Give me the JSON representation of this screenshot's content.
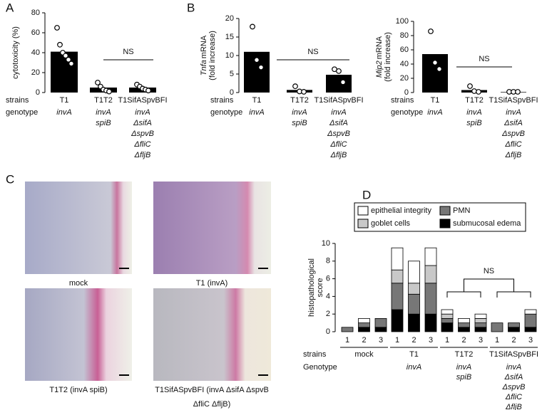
{
  "panels": {
    "labels": [
      "A",
      "B",
      "C",
      "D"
    ],
    "images": [
      {
        "caption": [
          "mock"
        ]
      },
      {
        "caption": [
          "T1 (invA)"
        ]
      },
      {
        "caption": [
          "T1T2 (invA spiB)"
        ]
      },
      {
        "caption": [
          "T1SifASpvBFI (invA ΔsifA ΔspvB",
          "ΔfliC ΔfljB)"
        ]
      }
    ]
  },
  "chart_data": [
    {
      "type": "bar",
      "ylabel": {
        "gene": "",
        "text": "cytotoxicity (%)",
        "unit": ""
      },
      "categories": [
        "T1",
        "T1T2",
        "T1SifASpvBFI"
      ],
      "values": [
        41,
        5,
        5
      ],
      "points": [
        [
          65,
          48,
          40,
          37,
          33,
          29
        ],
        [
          10,
          6,
          3,
          2,
          1
        ],
        [
          8,
          6,
          4,
          3,
          2
        ]
      ],
      "color": "#000000",
      "ylim": [
        0,
        80
      ],
      "yticks": [
        0,
        20,
        40,
        60,
        80
      ],
      "row_labels": [
        "strains",
        "genotype"
      ],
      "genotypes": [
        [
          "invA"
        ],
        [
          "invA",
          "spiB"
        ],
        [
          "invA",
          "ΔsifA",
          "ΔspvB",
          "ΔfliC",
          "ΔfljB"
        ]
      ],
      "annotations": [
        {
          "text": "NS"
        }
      ]
    },
    {
      "type": "bar",
      "ylabel": {
        "gene": "Tnfa",
        "text": "mRNA",
        "unit": "(fold increase)"
      },
      "categories": [
        "T1",
        "T1T2",
        "T1SifASpvBFI"
      ],
      "values": [
        11,
        0.7,
        4.8
      ],
      "points": [
        [
          17.8,
          8.8,
          6.8
        ],
        [
          1.7,
          0.3,
          0.2
        ],
        [
          6.3,
          5.8,
          2.8
        ]
      ],
      "color": "#000000",
      "ylim": [
        0,
        20
      ],
      "yticks": [
        0,
        5,
        10,
        15,
        20
      ],
      "row_labels": [
        "strains",
        "genotype"
      ],
      "genotypes": [
        [
          "invA"
        ],
        [
          "invA",
          "spiB"
        ],
        [
          "invA",
          "ΔsifA",
          "ΔspvB",
          "ΔfliC",
          "ΔfljB"
        ]
      ],
      "annotations": [
        {
          "text": "NS"
        }
      ]
    },
    {
      "type": "bar",
      "ylabel": {
        "gene": "Mip2",
        "text": "mRNA",
        "unit": "(fold increase)"
      },
      "categories": [
        "T1",
        "T1T2",
        "T1SifASpvBFI"
      ],
      "values": [
        54,
        3.5,
        0.7
      ],
      "points": [
        [
          86,
          42,
          33
        ],
        [
          9,
          2,
          1
        ],
        [
          1,
          1,
          1
        ]
      ],
      "color": "#000000",
      "ylim": [
        0,
        100
      ],
      "yticks": [
        0,
        20,
        40,
        60,
        80,
        100
      ],
      "row_labels": [
        "strains",
        "genotype"
      ],
      "genotypes": [
        [
          "invA"
        ],
        [
          "invA",
          "spiB"
        ],
        [
          "invA",
          "ΔsifA",
          "ΔspvB",
          "ΔfliC",
          "ΔfljB"
        ]
      ],
      "annotations": [
        {
          "text": "NS"
        }
      ]
    },
    {
      "type": "stacked-bar",
      "ylabel": [
        "histopathological",
        "score"
      ],
      "categories": [
        "1",
        "2",
        "3",
        "1",
        "2",
        "3",
        "1",
        "2",
        "3",
        "1",
        "2",
        "3"
      ],
      "series": [
        {
          "name": "submucosal edema",
          "color": "#000000",
          "values": [
            0,
            0.5,
            0.5,
            2.5,
            2,
            2,
            1,
            0.5,
            0.5,
            0,
            0.5,
            0.5
          ]
        },
        {
          "name": "PMN",
          "color": "#777777",
          "values": [
            0.5,
            0.5,
            1,
            3,
            2.25,
            3.5,
            0.5,
            0.5,
            0.5,
            1,
            0.5,
            1.5
          ]
        },
        {
          "name": "goblet cells",
          "color": "#c8c8c8",
          "values": [
            0,
            0,
            0,
            1.5,
            1.25,
            2,
            0.5,
            0,
            0.5,
            0,
            0,
            0
          ]
        },
        {
          "name": "epithelial integrity",
          "color": "#ffffff",
          "values": [
            0,
            0.5,
            0,
            2.5,
            2.5,
            2,
            0.5,
            0.5,
            0.5,
            0,
            0,
            0.5
          ]
        }
      ],
      "ylim": [
        0,
        10
      ],
      "yticks": [
        0,
        2,
        4,
        6,
        8,
        10
      ],
      "row_labels": [
        "strains",
        "Genotype"
      ],
      "groups": [
        "mock",
        "T1",
        "T1T2",
        "T1SifASpvBFI"
      ],
      "genotypes": [
        [],
        [
          "invA"
        ],
        [
          "invA",
          "spiB"
        ],
        [
          "invA",
          "ΔsifA",
          "ΔspvB",
          "ΔfliC",
          "ΔfljB"
        ]
      ],
      "annotations": [
        {
          "text": "NS"
        }
      ]
    }
  ]
}
